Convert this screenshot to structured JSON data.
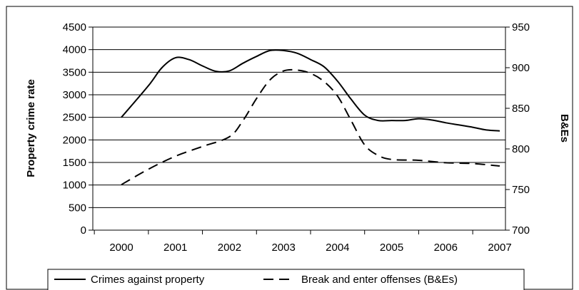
{
  "chart_data": {
    "type": "line",
    "title": "",
    "ylabel_left": "Property crime rate",
    "ylabel_right": "B&Es",
    "xlabel": "",
    "x_ticks": [
      "2000",
      "2001",
      "2002",
      "2003",
      "2004",
      "2005",
      "2006",
      "2007"
    ],
    "y_left_ticks": [
      "0",
      "500",
      "1000",
      "1500",
      "2000",
      "2500",
      "3000",
      "3500",
      "4000",
      "4500"
    ],
    "y_right_ticks": [
      "700",
      "750",
      "800",
      "850",
      "900",
      "950"
    ],
    "ylim_left": [
      0,
      4500
    ],
    "ylim_right": [
      700,
      950
    ],
    "grid": "horizontal",
    "legend_position": "bottom",
    "series": [
      {
        "name": "Crimes against property",
        "axis": "left",
        "line_style": "solid",
        "color": "#000000",
        "x": [
          2000,
          2000.5,
          2000.75,
          2001,
          2001.25,
          2001.5,
          2001.75,
          2002,
          2002.25,
          2002.5,
          2002.75,
          2003,
          2003.25,
          2003.5,
          2003.75,
          2004,
          2004.25,
          2004.5,
          2004.75,
          2005,
          2005.25,
          2005.5,
          2005.75,
          2006,
          2006.25,
          2006.5,
          2006.75,
          2007
        ],
        "y": [
          2500,
          3200,
          3600,
          3820,
          3780,
          3640,
          3520,
          3530,
          3700,
          3850,
          3980,
          3980,
          3920,
          3780,
          3620,
          3300,
          2900,
          2550,
          2430,
          2430,
          2430,
          2470,
          2440,
          2380,
          2330,
          2280,
          2220,
          2200
        ]
      },
      {
        "name": "Break and enter offenses (B&Es)",
        "axis": "right",
        "line_style": "dashed",
        "color": "#000000",
        "x": [
          2000,
          2000.5,
          2001,
          2001.5,
          2002,
          2002.25,
          2002.5,
          2002.75,
          2003,
          2003.25,
          2003.5,
          2003.75,
          2004,
          2004.25,
          2004.5,
          2004.75,
          2005,
          2005.5,
          2006,
          2006.5,
          2007
        ],
        "y": [
          756,
          775,
          791,
          803,
          815,
          835,
          862,
          885,
          896,
          897,
          893,
          883,
          865,
          835,
          805,
          792,
          787,
          786,
          783,
          782,
          779
        ]
      }
    ]
  }
}
